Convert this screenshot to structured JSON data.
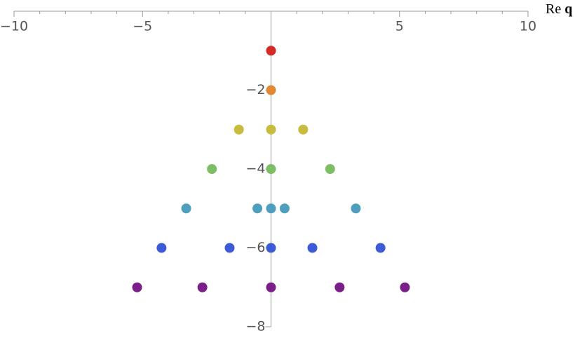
{
  "chart_data": {
    "type": "scatter",
    "xlabel": [
      "Re",
      "q"
    ],
    "xlim": [
      -10,
      10
    ],
    "ylim": [
      -8,
      0
    ],
    "xticks": [
      {
        "value": -10,
        "label": "−10"
      },
      {
        "value": -5,
        "label": "−5"
      },
      5,
      10
    ],
    "xminorticks": [
      -9,
      -8,
      -7,
      -6,
      -4,
      -3,
      -2,
      -1,
      1,
      2,
      3,
      4,
      6,
      7,
      8,
      9
    ],
    "yticks": [
      {
        "value": -2,
        "label": "−2"
      },
      {
        "value": -4,
        "label": "−4"
      },
      {
        "value": -6,
        "label": "−6"
      },
      {
        "value": -8,
        "label": "−8"
      }
    ],
    "yminorticks": [
      -1,
      -3,
      -5,
      -7
    ],
    "series": [
      {
        "color": "#d62a25",
        "x": [
          0
        ],
        "values": [
          -1
        ]
      },
      {
        "color": "#e08a35",
        "x": [
          0
        ],
        "values": [
          -2
        ]
      },
      {
        "color": "#c7bc3e",
        "x": [
          -1.25,
          0,
          1.25
        ],
        "values": [
          -3,
          -3,
          -3
        ]
      },
      {
        "color": "#7dbd64",
        "x": [
          -2.3,
          0,
          2.3
        ],
        "values": [
          -4,
          -4,
          -4
        ]
      },
      {
        "color": "#4d9fbd",
        "x": [
          -3.3,
          -0.53,
          0,
          0.53,
          3.3
        ],
        "values": [
          -5,
          -5,
          -5,
          -5,
          -5
        ]
      },
      {
        "color": "#3d5bd6",
        "x": [
          -4.26,
          -1.61,
          0,
          1.61,
          4.26
        ],
        "values": [
          -6,
          -6,
          -6,
          -6,
          -6
        ]
      },
      {
        "color": "#7a1f8a",
        "x": [
          -5.21,
          -2.67,
          0,
          2.67,
          5.21
        ],
        "values": [
          -7,
          -7,
          -7,
          -7,
          -7
        ]
      }
    ]
  }
}
